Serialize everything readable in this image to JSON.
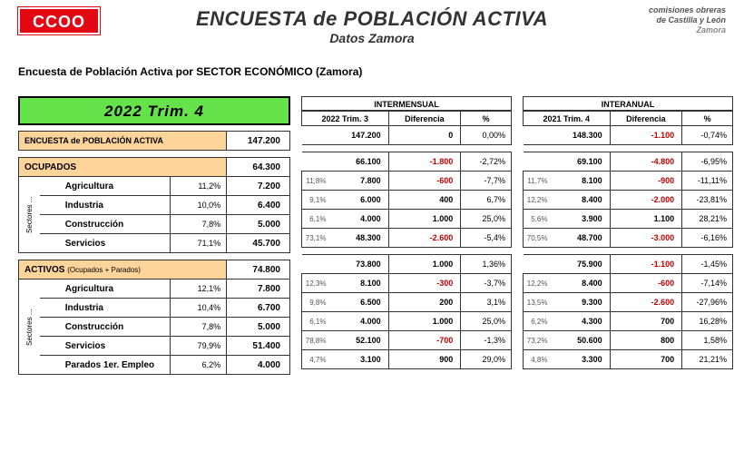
{
  "header": {
    "logo_text": "CCOO",
    "title": "ENCUESTA de POBLACIÓN ACTIVA",
    "subtitle": "Datos Zamora",
    "corner1": "comisiones obreras",
    "corner2": "de Castilla y León",
    "corner3": "Zamora"
  },
  "section_title": "Encuesta de Población Activa  por  SECTOR ECONÓMICO  (Zamora)",
  "period": "2022  Trim. 4",
  "left": {
    "epa_label": "ENCUESTA de POBLACIÓN ACTIVA",
    "epa_value": "147.200",
    "ocupados_label": "OCUPADOS",
    "ocupados_value": "64.300",
    "activos_label": "ACTIVOS",
    "activos_small": "(Ocupados + Parados)",
    "activos_value": "74.800",
    "sectores_label": "Sectores ...",
    "rows_o": [
      {
        "lbl": "Agricultura",
        "pct": "11,2%",
        "val": "7.200"
      },
      {
        "lbl": "Industria",
        "pct": "10,0%",
        "val": "6.400"
      },
      {
        "lbl": "Construcción",
        "pct": "7,8%",
        "val": "5.000"
      },
      {
        "lbl": "Servicios",
        "pct": "71,1%",
        "val": "45.700"
      }
    ],
    "rows_a": [
      {
        "lbl": "Agricultura",
        "pct": "12,1%",
        "val": "7.800"
      },
      {
        "lbl": "Industria",
        "pct": "10,4%",
        "val": "6.700"
      },
      {
        "lbl": "Construcción",
        "pct": "7,8%",
        "val": "5.000"
      },
      {
        "lbl": "Servicios",
        "pct": "79,9%",
        "val": "51.400"
      },
      {
        "lbl": "Parados 1er. Empleo",
        "pct": "6,2%",
        "val": "4.000"
      }
    ]
  },
  "mid": {
    "group": "INTERMENSUAL",
    "c1": "2022 Trim. 3",
    "c2": "Diferencia",
    "c3": "%",
    "epa": {
      "v": "147.200",
      "d": "0",
      "neg": false,
      "p": "0,00%"
    },
    "ocup": {
      "v": "66.100",
      "d": "-1.800",
      "neg": true,
      "p": "-2,72%"
    },
    "o": [
      {
        "sp": "11,8%",
        "v": "7.800",
        "d": "-600",
        "neg": true,
        "p": "-7,7%"
      },
      {
        "sp": "9,1%",
        "v": "6.000",
        "d": "400",
        "neg": false,
        "p": "6,7%"
      },
      {
        "sp": "6,1%",
        "v": "4.000",
        "d": "1.000",
        "neg": false,
        "p": "25,0%"
      },
      {
        "sp": "73,1%",
        "v": "48.300",
        "d": "-2.600",
        "neg": true,
        "p": "-5,4%"
      }
    ],
    "act": {
      "v": "73.800",
      "d": "1.000",
      "neg": false,
      "p": "1,36%"
    },
    "a": [
      {
        "sp": "12,3%",
        "v": "8.100",
        "d": "-300",
        "neg": true,
        "p": "-3,7%"
      },
      {
        "sp": "9,8%",
        "v": "6.500",
        "d": "200",
        "neg": false,
        "p": "3,1%"
      },
      {
        "sp": "6,1%",
        "v": "4.000",
        "d": "1.000",
        "neg": false,
        "p": "25,0%"
      },
      {
        "sp": "78,8%",
        "v": "52.100",
        "d": "-700",
        "neg": true,
        "p": "-1,3%"
      },
      {
        "sp": "4,7%",
        "v": "3.100",
        "d": "900",
        "neg": false,
        "p": "29,0%"
      }
    ]
  },
  "right": {
    "group": "INTERANUAL",
    "c1": "2021 Trim. 4",
    "c2": "Diferencia",
    "c3": "%",
    "epa": {
      "v": "148.300",
      "d": "-1.100",
      "neg": true,
      "p": "-0,74%"
    },
    "ocup": {
      "v": "69.100",
      "d": "-4.800",
      "neg": true,
      "p": "-6,95%"
    },
    "o": [
      {
        "sp": "11,7%",
        "v": "8.100",
        "d": "-900",
        "neg": true,
        "p": "-11,11%"
      },
      {
        "sp": "12,2%",
        "v": "8.400",
        "d": "-2.000",
        "neg": true,
        "p": "-23,81%"
      },
      {
        "sp": "5,6%",
        "v": "3.900",
        "d": "1.100",
        "neg": false,
        "p": "28,21%"
      },
      {
        "sp": "70,5%",
        "v": "48.700",
        "d": "-3.000",
        "neg": true,
        "p": "-6,16%"
      }
    ],
    "act": {
      "v": "75.900",
      "d": "-1.100",
      "neg": true,
      "p": "-1,45%"
    },
    "a": [
      {
        "sp": "12,2%",
        "v": "8.400",
        "d": "-600",
        "neg": true,
        "p": "-7,14%"
      },
      {
        "sp": "13,5%",
        "v": "9.300",
        "d": "-2.600",
        "neg": true,
        "p": "-27,96%"
      },
      {
        "sp": "6,2%",
        "v": "4.300",
        "d": "700",
        "neg": false,
        "p": "16,28%"
      },
      {
        "sp": "73,2%",
        "v": "50.600",
        "d": "800",
        "neg": false,
        "p": "1,58%"
      },
      {
        "sp": "4,8%",
        "v": "3.300",
        "d": "700",
        "neg": false,
        "p": "21,21%"
      }
    ]
  }
}
